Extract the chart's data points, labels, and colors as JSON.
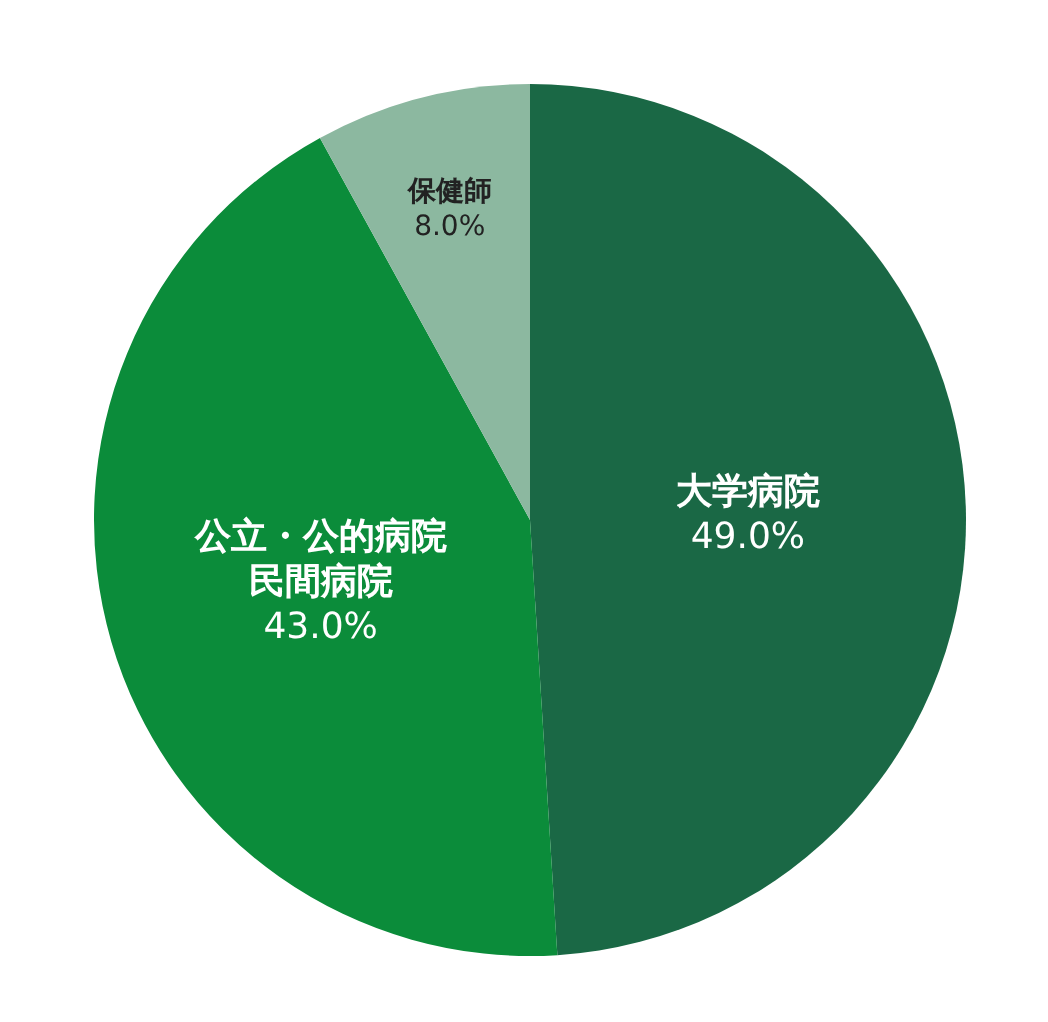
{
  "chart_data": {
    "type": "pie",
    "categories": [
      "大学病院",
      "公立・公的病院民間病院",
      "保健師"
    ],
    "values": [
      49.0,
      43.0,
      8.0
    ],
    "colors": [
      "#1a6845",
      "#0b8c3a",
      "#8cb8a0"
    ],
    "value_labels": [
      "49.0%",
      "43.0%",
      "8.0%"
    ]
  }
}
